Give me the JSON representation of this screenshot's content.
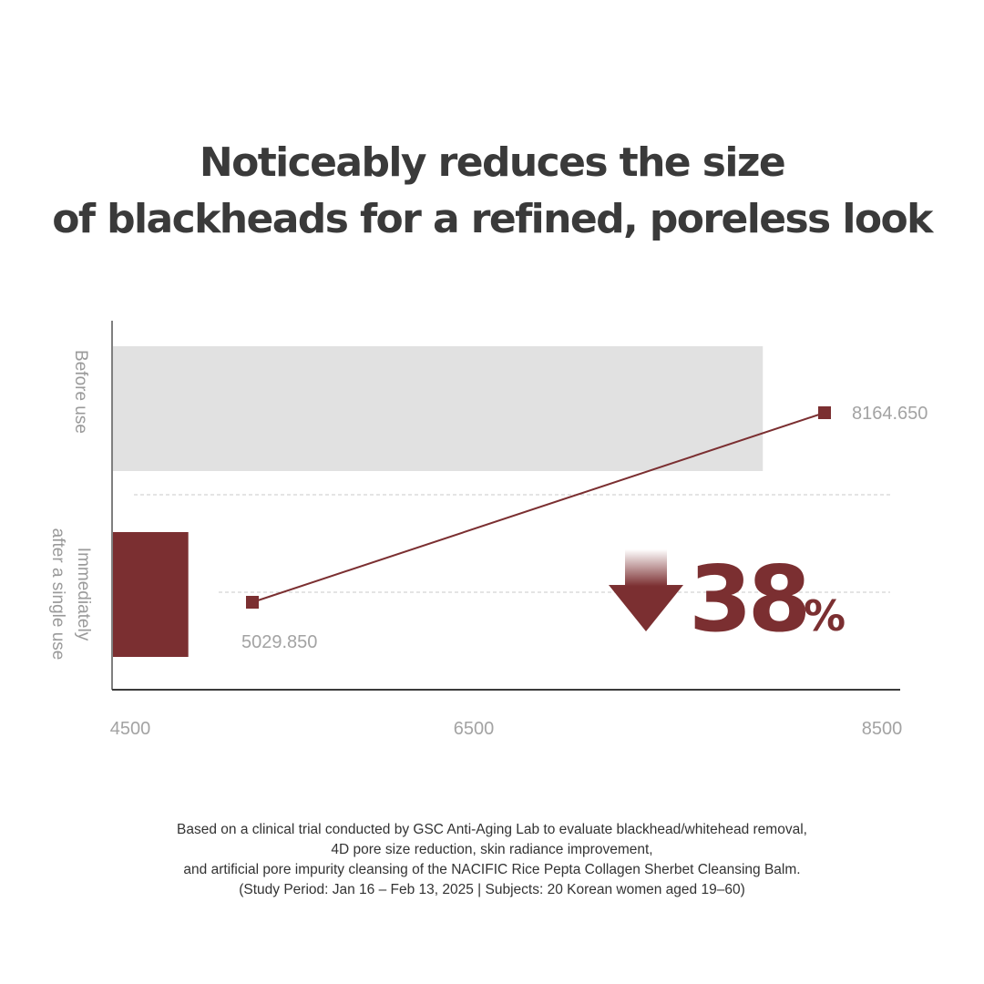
{
  "title": {
    "line1": "Noticeably reduces the size",
    "line2": "of blackheads for a refined, poreless look"
  },
  "colors": {
    "accent": "#7b2f31",
    "bar_before": "#e1e1e1",
    "axis": "#555555",
    "label_gray": "#9a9a9a",
    "gridline": "#c9c9c9"
  },
  "chart_data": {
    "type": "bar",
    "orientation": "horizontal",
    "categories": [
      "Before use",
      "Immediately after a single use"
    ],
    "values": [
      8164.65,
      5029.85
    ],
    "value_labels": [
      "8164.650",
      "5029.850"
    ],
    "xlim": [
      4500,
      8500
    ],
    "xticks": [
      "4500",
      "6500",
      "8500"
    ],
    "grid": "dashed horizontal separators",
    "annotation": {
      "arrow": "down-arrow-icon",
      "value": "38",
      "unit": "%"
    }
  },
  "footnote": {
    "line1": "Based on a clinical trial conducted by GSC Anti-Aging Lab to evaluate blackhead/whitehead removal,",
    "line2": "4D pore size reduction, skin radiance improvement,",
    "line3": "and artificial pore impurity cleansing of the NACIFIC Rice Pepta Collagen Sherbet Cleansing Balm.",
    "line4": "(Study Period: Jan 16 – Feb 13, 2025 | Subjects: 20 Korean women aged 19–60)"
  }
}
